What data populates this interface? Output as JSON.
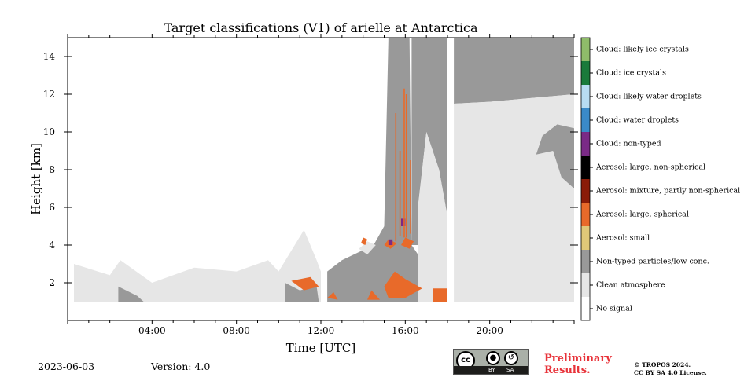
{
  "chart_data": {
    "type": "heatmap",
    "title": "Target classifications (V1) of arielle at Antarctica",
    "xlabel": "Time [UTC]",
    "ylabel": "Height [km]",
    "xlim": [
      0,
      24
    ],
    "ylim": [
      0,
      15
    ],
    "xticks": [
      {
        "value": 4,
        "label": "04:00"
      },
      {
        "value": 8,
        "label": "08:00"
      },
      {
        "value": 12,
        "label": "12:00"
      },
      {
        "value": 16,
        "label": "16:00"
      },
      {
        "value": 20,
        "label": "20:00"
      }
    ],
    "yticks": [
      {
        "value": 2,
        "label": "2"
      },
      {
        "value": 4,
        "label": "4"
      },
      {
        "value": 6,
        "label": "6"
      },
      {
        "value": 8,
        "label": "8"
      },
      {
        "value": 10,
        "label": "10"
      },
      {
        "value": 12,
        "label": "12"
      },
      {
        "value": 14,
        "label": "14"
      }
    ],
    "legend": [
      {
        "label": "Cloud: likely ice crystals",
        "color": "#8fbc6a"
      },
      {
        "label": "Cloud: ice crystals",
        "color": "#1a7a3a"
      },
      {
        "label": "Cloud: likely water droplets",
        "color": "#b8dcf2"
      },
      {
        "label": "Cloud: water droplets",
        "color": "#3a8ac8"
      },
      {
        "label": "Cloud: non-typed",
        "color": "#7a2a86"
      },
      {
        "label": "Aerosol: large, non-spherical",
        "color": "#000000"
      },
      {
        "label": "Aerosol: mixture, partly non-spherical",
        "color": "#8a1c08"
      },
      {
        "label": "Aerosol: large, spherical",
        "color": "#e86a2a"
      },
      {
        "label": "Aerosol: small",
        "color": "#e0c878"
      },
      {
        "label": "Non-typed particles/low conc.",
        "color": "#999999"
      },
      {
        "label": "Clean atmosphere",
        "color": "#e6e6e6"
      },
      {
        "label": "No signal",
        "color": "#ffffff"
      }
    ],
    "regions": [
      {
        "class": "Clean atmosphere",
        "color": "#e6e6e6",
        "points": [
          [
            0.3,
            1.0
          ],
          [
            0.3,
            3.0
          ],
          [
            2,
            2.4
          ],
          [
            2.5,
            3.2
          ],
          [
            4,
            2.0
          ],
          [
            6,
            2.8
          ],
          [
            8,
            2.6
          ],
          [
            9.5,
            3.2
          ],
          [
            10,
            2.6
          ],
          [
            11.2,
            4.8
          ],
          [
            11.8,
            3.2
          ],
          [
            12,
            2.6
          ],
          [
            12,
            1.0
          ]
        ]
      },
      {
        "class": "Non-typed particles/low conc.",
        "color": "#999999",
        "points": [
          [
            2.4,
            1.0
          ],
          [
            2.4,
            1.8
          ],
          [
            3.3,
            1.3
          ],
          [
            3.6,
            1.0
          ]
        ]
      },
      {
        "class": "Non-typed particles/low conc.",
        "color": "#999999",
        "points": [
          [
            10.3,
            1.0
          ],
          [
            10.3,
            2.0
          ],
          [
            11,
            1.6
          ],
          [
            11.8,
            1.8
          ],
          [
            11.9,
            1.0
          ]
        ]
      },
      {
        "class": "Non-typed particles/low conc.",
        "color": "#999999",
        "points": [
          [
            12.3,
            1.0
          ],
          [
            12.3,
            2.6
          ],
          [
            13,
            3.2
          ],
          [
            14.5,
            4.0
          ],
          [
            15.0,
            5.0
          ],
          [
            15.2,
            15
          ],
          [
            16.2,
            15
          ],
          [
            16.3,
            4.0
          ],
          [
            17.5,
            2.0
          ],
          [
            18,
            1.0
          ]
        ]
      },
      {
        "class": "Clean atmosphere",
        "color": "#e6e6e6",
        "points": [
          [
            13.8,
            3.8
          ],
          [
            14.2,
            4.2
          ],
          [
            14.6,
            4.0
          ],
          [
            14.2,
            3.5
          ]
        ]
      },
      {
        "class": "Non-typed particles/low conc.",
        "color": "#999999",
        "points": [
          [
            16.3,
            4.0
          ],
          [
            16.3,
            15
          ],
          [
            18.0,
            15
          ],
          [
            18.0,
            5.5
          ],
          [
            17.6,
            8.0
          ],
          [
            17.0,
            10.0
          ],
          [
            16.6,
            6.0
          ],
          [
            16.6,
            4.0
          ]
        ]
      },
      {
        "class": "Clean atmosphere",
        "color": "#e6e6e6",
        "points": [
          [
            16.6,
            1.0
          ],
          [
            16.6,
            6.0
          ],
          [
            17.0,
            10.0
          ],
          [
            17.6,
            8.0
          ],
          [
            18.0,
            5.5
          ],
          [
            18.0,
            1.0
          ]
        ]
      },
      {
        "class": "Non-typed particles/low conc.",
        "color": "#999999",
        "points": [
          [
            18.3,
            11.5
          ],
          [
            18.3,
            15
          ],
          [
            24,
            15
          ],
          [
            24,
            12.0
          ],
          [
            22,
            11.8
          ],
          [
            20,
            11.6
          ]
        ]
      },
      {
        "class": "Clean atmosphere",
        "color": "#e6e6e6",
        "points": [
          [
            18.3,
            1.0
          ],
          [
            18.3,
            11.5
          ],
          [
            20,
            11.6
          ],
          [
            22,
            11.8
          ],
          [
            24,
            12.0
          ],
          [
            24,
            1.0
          ]
        ]
      },
      {
        "class": "Non-typed particles/low conc.",
        "color": "#999999",
        "points": [
          [
            22.2,
            8.8
          ],
          [
            22.5,
            9.8
          ],
          [
            23.2,
            10.4
          ],
          [
            24,
            10.2
          ],
          [
            24,
            7.0
          ],
          [
            23.4,
            7.6
          ],
          [
            23,
            9.0
          ]
        ]
      },
      {
        "class": "Aerosol: large, spherical",
        "color": "#e86a2a",
        "points": [
          [
            10.6,
            2.1
          ],
          [
            11.2,
            1.6
          ],
          [
            11.9,
            1.8
          ],
          [
            11.5,
            2.3
          ]
        ]
      },
      {
        "class": "Aerosol: large, spherical",
        "color": "#e86a2a",
        "points": [
          [
            15,
            1.8
          ],
          [
            15.5,
            2.6
          ],
          [
            16.0,
            2.2
          ],
          [
            16.8,
            1.7
          ],
          [
            16.0,
            1.2
          ],
          [
            15.2,
            1.2
          ]
        ]
      },
      {
        "class": "Aerosol: large, spherical",
        "color": "#e86a2a",
        "points": [
          [
            14.2,
            1.1
          ],
          [
            14.4,
            1.6
          ],
          [
            14.8,
            1.1
          ]
        ]
      },
      {
        "class": "Aerosol: large, spherical",
        "color": "#e86a2a",
        "points": [
          [
            12.3,
            1.2
          ],
          [
            12.6,
            1.5
          ],
          [
            12.8,
            1.1
          ]
        ]
      },
      {
        "class": "Aerosol: large, spherical",
        "color": "#e86a2a",
        "points": [
          [
            17.3,
            1.0
          ],
          [
            17.3,
            1.7
          ],
          [
            18.0,
            1.7
          ],
          [
            18.0,
            1.0
          ]
        ]
      },
      {
        "class": "Aerosol: large, spherical",
        "color": "#e86a2a",
        "points": [
          [
            15.0,
            4.0
          ],
          [
            15.2,
            4.3
          ],
          [
            15.6,
            4.1
          ],
          [
            15.3,
            3.8
          ]
        ]
      },
      {
        "class": "Aerosol: large, spherical",
        "color": "#e86a2a",
        "points": [
          [
            15.8,
            4.0
          ],
          [
            16.0,
            4.4
          ],
          [
            16.4,
            4.2
          ],
          [
            16.2,
            3.8
          ]
        ]
      },
      {
        "class": "Aerosol: large, spherical",
        "color": "#e86a2a",
        "points": [
          [
            13.9,
            4.1
          ],
          [
            14.0,
            4.4
          ],
          [
            14.2,
            4.3
          ],
          [
            14.1,
            4.0
          ]
        ]
      },
      {
        "class": "Cloud: non-typed",
        "color": "#7a2a86",
        "points": [
          [
            15.2,
            4.0
          ],
          [
            15.2,
            4.3
          ],
          [
            15.4,
            4.3
          ],
          [
            15.4,
            4.0
          ]
        ]
      },
      {
        "class": "Cloud: non-typed",
        "color": "#7a2a86",
        "points": [
          [
            15.8,
            5.0
          ],
          [
            15.8,
            5.4
          ],
          [
            16.0,
            5.4
          ],
          [
            16.0,
            5.0
          ]
        ]
      }
    ],
    "streaks": [
      {
        "class": "Aerosol: large, spherical",
        "color": "#e86a2a",
        "x": 15.55,
        "y0": 4.2,
        "y1": 11.0
      },
      {
        "class": "Aerosol: large, spherical",
        "color": "#e86a2a",
        "x": 15.75,
        "y0": 4.5,
        "y1": 9.0
      },
      {
        "class": "Aerosol: large, spherical",
        "color": "#e86a2a",
        "x": 15.95,
        "y0": 4.4,
        "y1": 12.3
      },
      {
        "class": "Aerosol: large, spherical",
        "color": "#e86a2a",
        "x": 16.05,
        "y0": 4.4,
        "y1": 12.0
      },
      {
        "class": "Aerosol: large, spherical",
        "color": "#e86a2a",
        "x": 16.25,
        "y0": 4.6,
        "y1": 8.5
      }
    ],
    "gaps": [
      {
        "class": "No signal",
        "x0": 12.05,
        "x1": 12.2,
        "y0": 1.0,
        "y1": 15
      },
      {
        "class": "No signal",
        "x0": 18.05,
        "x1": 18.25,
        "y0": 1.0,
        "y1": 15
      }
    ]
  },
  "footer": {
    "date": "2023-06-03",
    "version": "Version: 4.0",
    "preliminary_line1": "Preliminary",
    "preliminary_line2": "Results.",
    "license_line1": "© TROPOS 2024.",
    "license_line2": "CC BY SA 4.0 License.",
    "cc_logo": {
      "cc": "cc",
      "by": "BY",
      "sa": "SA"
    }
  }
}
